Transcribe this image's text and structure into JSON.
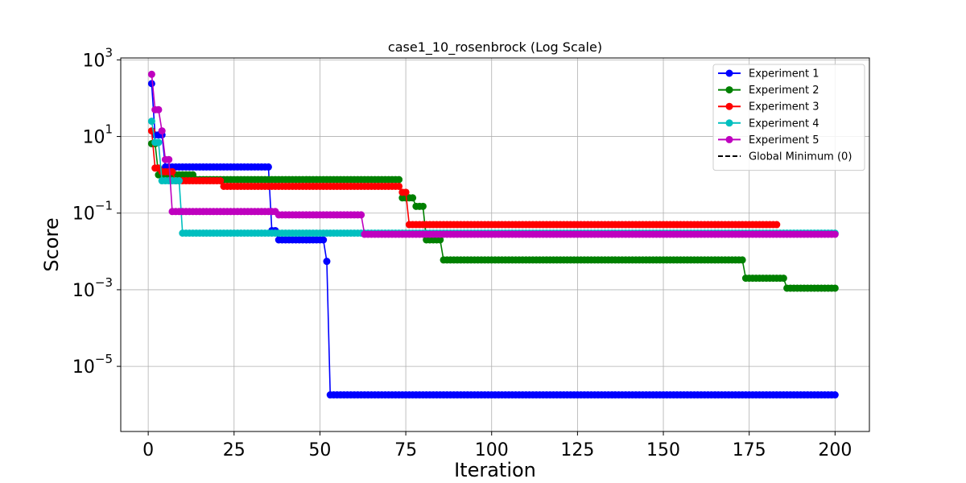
{
  "chart_data": {
    "type": "line",
    "title": "case1_10_rosenbrock (Log Scale)",
    "xlabel": "Iteration",
    "ylabel": "Score",
    "xlim": [
      -8,
      210
    ],
    "ylim_log10": [
      -6.7,
      3.05
    ],
    "y_scale": "log",
    "grid": true,
    "legend_position": "top-right",
    "x_ticks": [
      0,
      25,
      50,
      75,
      100,
      125,
      150,
      175,
      200
    ],
    "y_ticks": [
      {
        "exp": 3,
        "base": "10",
        "sup": "3"
      },
      {
        "exp": 1,
        "base": "10",
        "sup": "1"
      },
      {
        "exp": -1,
        "base": "10",
        "sup": "−1"
      },
      {
        "exp": -3,
        "base": "10",
        "sup": "−3"
      },
      {
        "exp": -5,
        "base": "10",
        "sup": "−5"
      }
    ],
    "series": [
      {
        "name": "Experiment 1",
        "color": "#0000ff",
        "segments": [
          [
            1,
            240
          ],
          [
            2,
            11
          ],
          [
            4,
            11
          ],
          [
            5,
            1.6
          ],
          [
            35,
            1.6
          ],
          [
            36,
            0.035
          ],
          [
            37,
            0.035
          ],
          [
            38,
            0.02
          ],
          [
            51,
            0.02
          ],
          [
            52,
            0.0055
          ],
          [
            53,
            1.8e-06
          ],
          [
            200,
            1.8e-06
          ]
        ]
      },
      {
        "name": "Experiment 2",
        "color": "#008000",
        "segments": [
          [
            1,
            6.5
          ],
          [
            2,
            6.5
          ],
          [
            3,
            1.0
          ],
          [
            13,
            1.0
          ],
          [
            14,
            0.75
          ],
          [
            73,
            0.75
          ],
          [
            74,
            0.25
          ],
          [
            77,
            0.25
          ],
          [
            78,
            0.15
          ],
          [
            80,
            0.15
          ],
          [
            81,
            0.02
          ],
          [
            85,
            0.02
          ],
          [
            86,
            0.006
          ],
          [
            173,
            0.006
          ],
          [
            174,
            0.002
          ],
          [
            185,
            0.002
          ],
          [
            186,
            0.0011
          ],
          [
            200,
            0.0011
          ]
        ]
      },
      {
        "name": "Experiment 3",
        "color": "#ff0000",
        "segments": [
          [
            1,
            14
          ],
          [
            2,
            1.5
          ],
          [
            3,
            1.5
          ],
          [
            4,
            1.2
          ],
          [
            7,
            1.2
          ],
          [
            8,
            0.7
          ],
          [
            21,
            0.7
          ],
          [
            22,
            0.5
          ],
          [
            73,
            0.5
          ],
          [
            74,
            0.35
          ],
          [
            75,
            0.35
          ],
          [
            76,
            0.05
          ],
          [
            183,
            0.05
          ]
        ]
      },
      {
        "name": "Experiment 4",
        "color": "#00bfbf",
        "segments": [
          [
            1,
            25
          ],
          [
            2,
            7
          ],
          [
            3,
            7
          ],
          [
            4,
            0.7
          ],
          [
            9,
            0.7
          ],
          [
            10,
            0.03
          ],
          [
            200,
            0.03
          ]
        ]
      },
      {
        "name": "Experiment 5",
        "color": "#bf00bf",
        "segments": [
          [
            1,
            420
          ],
          [
            2,
            50
          ],
          [
            3,
            50
          ],
          [
            4,
            14
          ],
          [
            5,
            2.5
          ],
          [
            6,
            2.5
          ],
          [
            7,
            0.11
          ],
          [
            37,
            0.11
          ],
          [
            38,
            0.09
          ],
          [
            62,
            0.09
          ],
          [
            63,
            0.028
          ],
          [
            200,
            0.028
          ]
        ]
      }
    ],
    "legend_extra": {
      "name": "Global Minimum (0)",
      "style": "dashed",
      "color": "#000000"
    }
  }
}
